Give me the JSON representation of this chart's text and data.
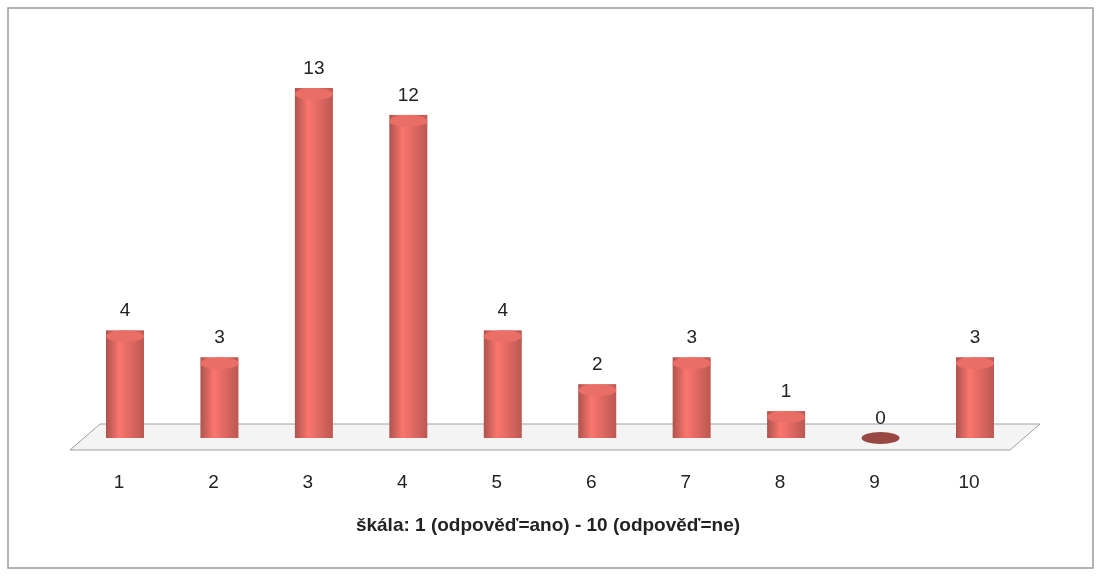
{
  "chart_data": {
    "type": "bar",
    "xlabel": "škála: 1 (odpověď=ano) - 10 (odpověď=ne)",
    "categories": [
      "1",
      "2",
      "3",
      "4",
      "5",
      "6",
      "7",
      "8",
      "9",
      "10"
    ],
    "values": [
      4,
      3,
      13,
      12,
      4,
      2,
      3,
      1,
      0,
      3
    ],
    "color": "#d9665f",
    "data_labels": true
  }
}
